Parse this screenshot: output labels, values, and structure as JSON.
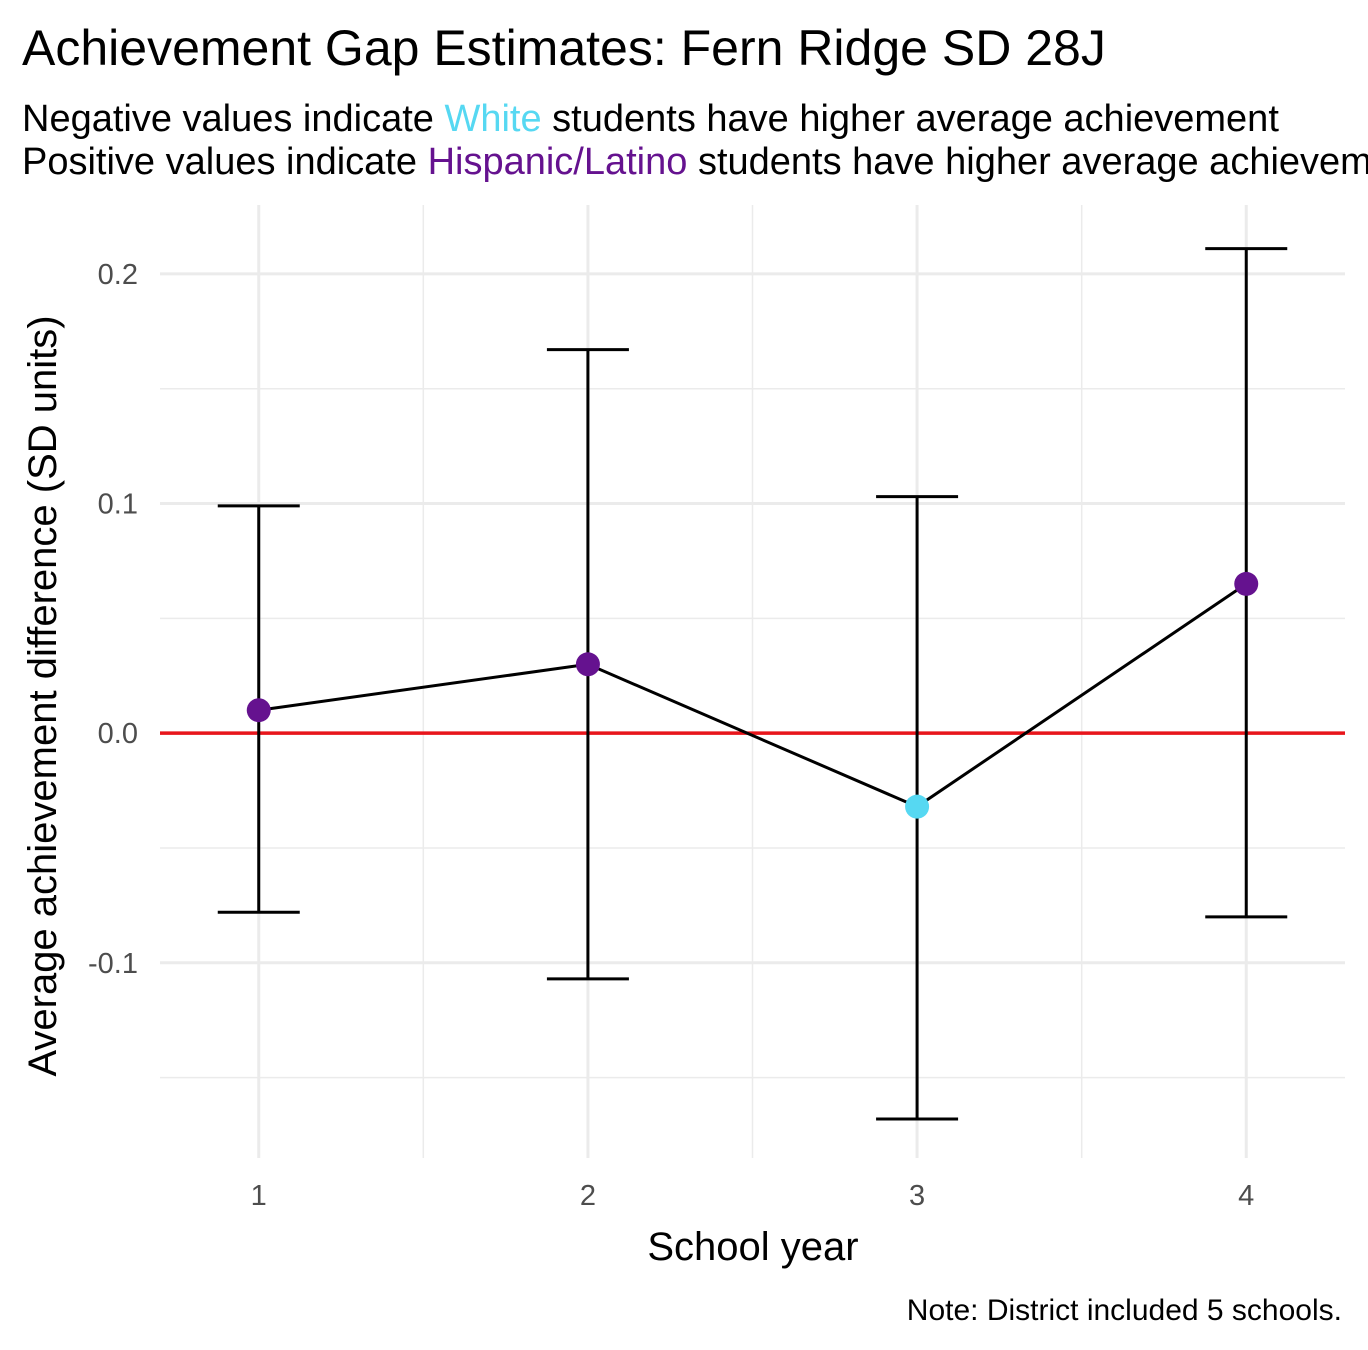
{
  "title": "Achievement Gap Estimates: Fern Ridge SD 28J",
  "subtitle": {
    "line1_pre": "Negative values indicate ",
    "line1_group": "White",
    "line1_post": " students have higher average achievement",
    "line2_pre": "Positive values indicate ",
    "line2_group": "Hispanic/Latino",
    "line2_post": " students have higher average achievement"
  },
  "caption": "Note: District included 5 schools.",
  "colors": {
    "white_group": "#56d8f2",
    "hispanic_group": "#65128f",
    "reference_line": "#e8151b",
    "series_line": "#000000",
    "grid": "#ebebeb"
  },
  "chart_data": {
    "type": "scatter",
    "xlabel": "School year",
    "ylabel": "Average achievement difference (SD units)",
    "x": [
      1,
      2,
      3,
      4
    ],
    "x_tick_labels": [
      "1",
      "2",
      "3",
      "4"
    ],
    "xlim": [
      0.7,
      4.3
    ],
    "y_ticks": [
      -0.1,
      0.0,
      0.1,
      0.2
    ],
    "y_tick_labels": [
      "-0.1",
      "0.0",
      "0.1",
      "0.2"
    ],
    "ylim": [
      -0.185,
      0.23
    ],
    "reference_y": 0,
    "grid": true,
    "legend": "none",
    "points": [
      {
        "x": 1,
        "y": 0.01,
        "lower": -0.078,
        "upper": 0.099,
        "group": "Hispanic/Latino"
      },
      {
        "x": 2,
        "y": 0.03,
        "lower": -0.107,
        "upper": 0.167,
        "group": "Hispanic/Latino"
      },
      {
        "x": 3,
        "y": -0.032,
        "lower": -0.168,
        "upper": 0.103,
        "group": "White"
      },
      {
        "x": 4,
        "y": 0.065,
        "lower": -0.08,
        "upper": 0.211,
        "group": "Hispanic/Latino"
      }
    ]
  }
}
